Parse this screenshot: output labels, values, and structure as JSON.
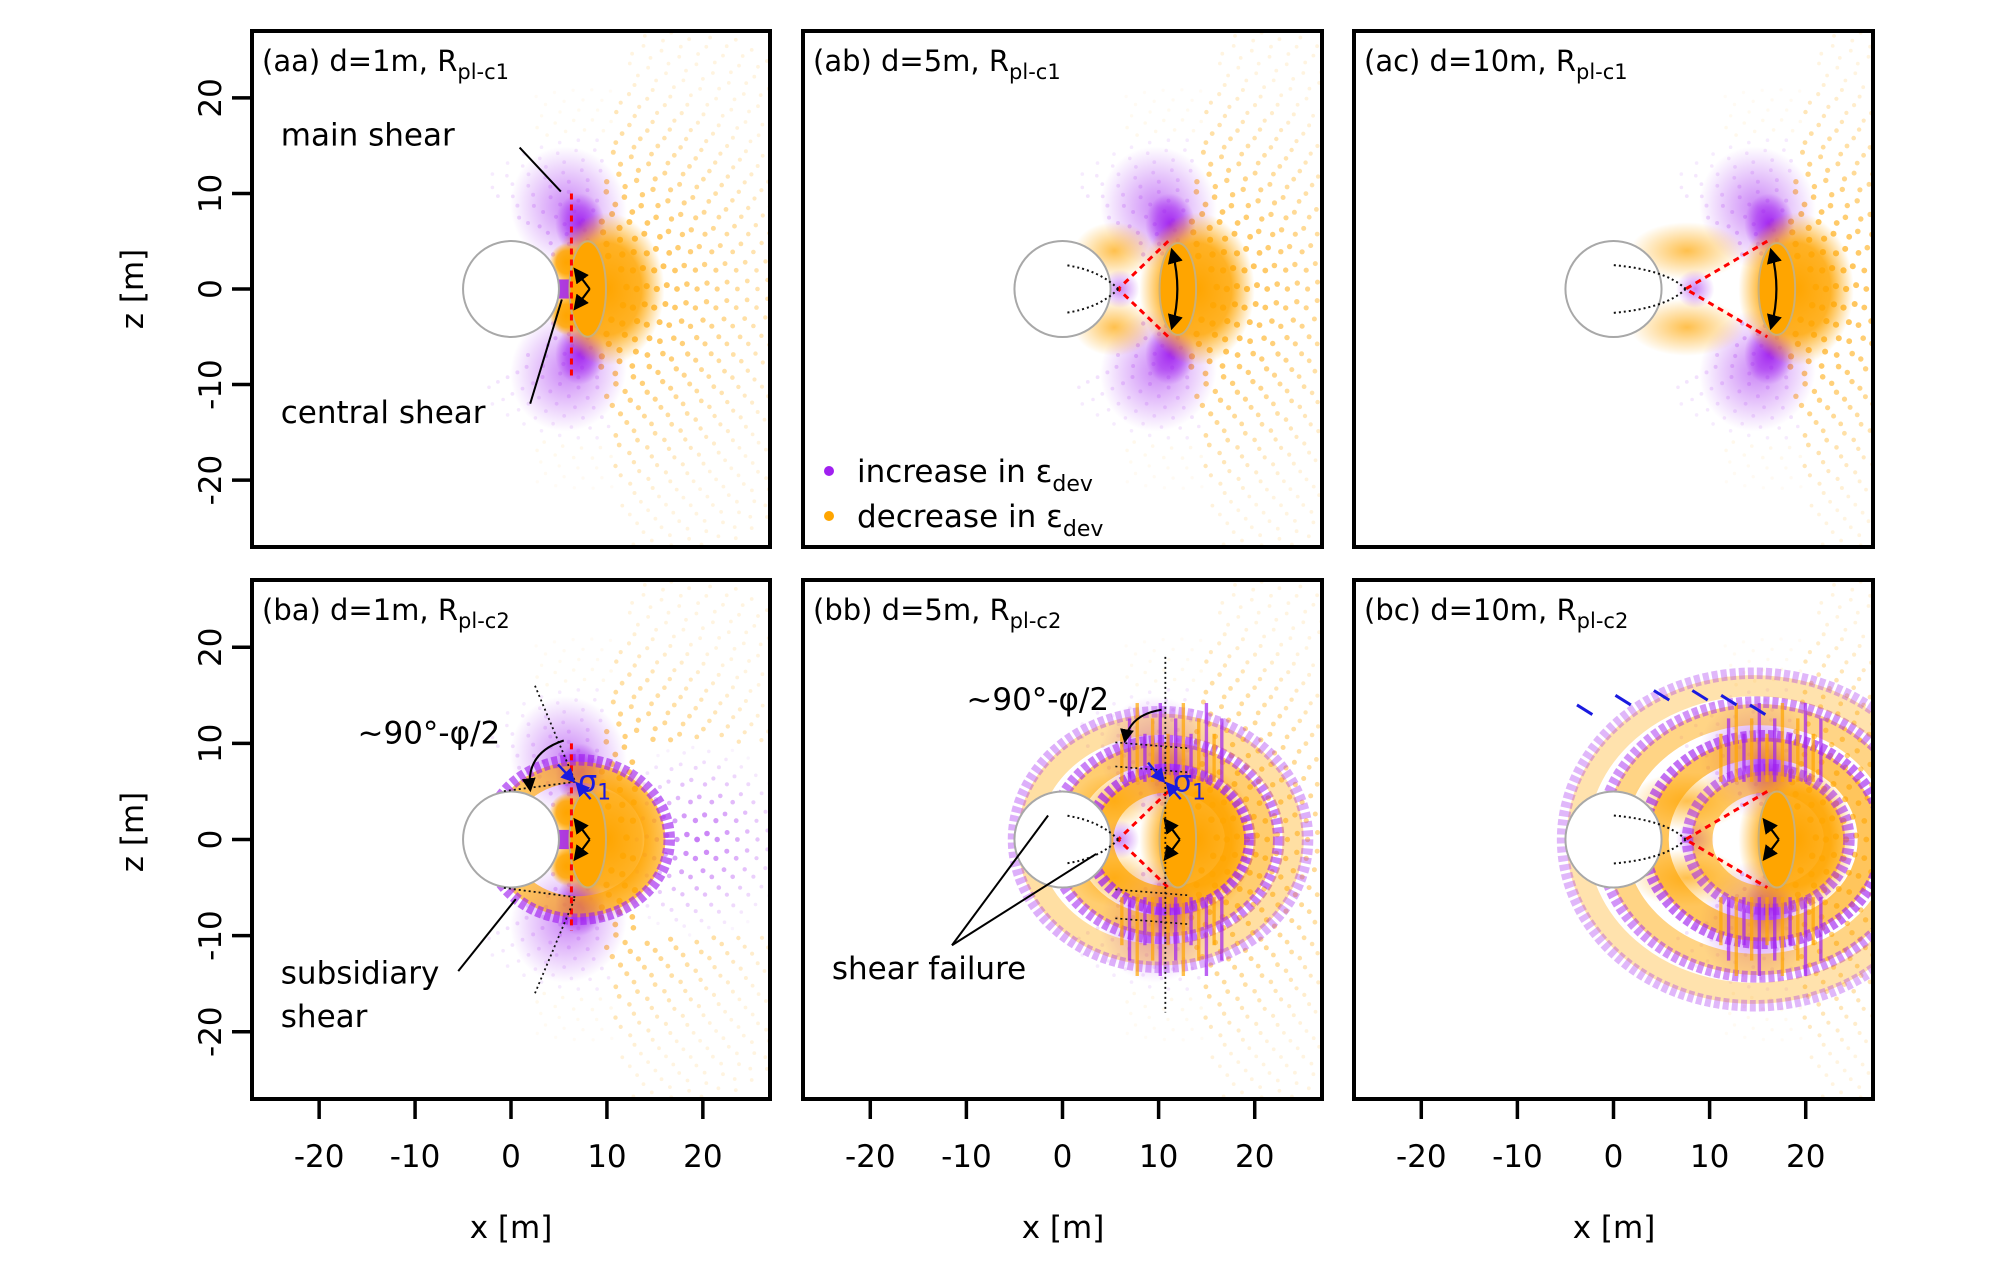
{
  "chart_data": {
    "type": "scatter",
    "description": "Six-panel grid of deviatoric strain change point clouds around a circular opening",
    "xlabel": "x [m]",
    "ylabel": "z [m]",
    "xlim": [
      -27,
      27
    ],
    "ylim": [
      -27,
      27
    ],
    "x_ticks": [
      -20,
      -10,
      0,
      10,
      20
    ],
    "y_ticks": [
      -20,
      -10,
      0,
      10,
      20
    ],
    "x_tick_labels": [
      "-20",
      "-10",
      "0",
      "10",
      "20"
    ],
    "y_tick_labels": [
      "-20",
      "-10",
      "0",
      "10",
      "20"
    ],
    "legend": {
      "placement": "bottom-left of panel (ab)",
      "entries": [
        {
          "label": "increase in ε",
          "sub": "dev",
          "color": "#A020F0"
        },
        {
          "label": "decrease in ε",
          "sub": "dev",
          "color": "#FFA500"
        }
      ]
    },
    "colors": {
      "increase": "#A020F0",
      "decrease": "#FFA500",
      "main_shear_line": "#FF0000",
      "sigma1": "#1a1adf",
      "opening_outline": "#a8a8a8"
    },
    "opening": {
      "x": 0,
      "z": 0,
      "radius": 5
    },
    "panels": [
      {
        "id": "aa",
        "label": "(aa) d=1m, R",
        "sub": "pl-c1",
        "d": 1,
        "ellipse_x": 8,
        "ellipse_rx": 1.9,
        "ellipse_rz": 5.0,
        "annotations": [
          {
            "text": "main shear",
            "x": -24,
            "z": 15
          },
          {
            "text": "central shear",
            "x": -24,
            "z": -14
          }
        ]
      },
      {
        "id": "ab",
        "label": "(ab) d=5m, R",
        "sub": "pl-c1",
        "d": 5,
        "ellipse_x": 12,
        "ellipse_rx": 1.9,
        "ellipse_rz": 4.8,
        "annotations": []
      },
      {
        "id": "ac",
        "label": "(ac) d=10m, R",
        "sub": "pl-c1",
        "d": 10,
        "ellipse_x": 17,
        "ellipse_rx": 1.9,
        "ellipse_rz": 4.8,
        "annotations": []
      },
      {
        "id": "ba",
        "label": "(ba) d=1m, R",
        "sub": "pl-c2",
        "d": 1,
        "ellipse_x": 8,
        "ellipse_rx": 1.9,
        "ellipse_rz": 5.0,
        "annotations": [
          {
            "text": "~90°-φ/2",
            "x": -16,
            "z": 10
          },
          {
            "text": "σ",
            "sub": "1",
            "x": 7,
            "z": 5
          },
          {
            "text": "subsidiary",
            "x": -24,
            "z": -15
          },
          {
            "text": "shear",
            "x": -24,
            "z": -19.5
          }
        ]
      },
      {
        "id": "bb",
        "label": "(bb) d=5m, R",
        "sub": "pl-c2",
        "d": 5,
        "ellipse_x": 12,
        "ellipse_rx": 1.9,
        "ellipse_rz": 5.0,
        "annotations": [
          {
            "text": "~90°-φ/2",
            "x": -10,
            "z": 13.5
          },
          {
            "text": "σ",
            "sub": "1",
            "x": 11.5,
            "z": 5
          },
          {
            "text": "shear failure",
            "x": -24,
            "z": -14.5
          }
        ]
      },
      {
        "id": "bc",
        "label": "(bc) d=10m, R",
        "sub": "pl-c2",
        "d": 10,
        "ellipse_x": 17,
        "ellipse_rx": 1.9,
        "ellipse_rz": 5.0,
        "annotations": []
      }
    ]
  }
}
